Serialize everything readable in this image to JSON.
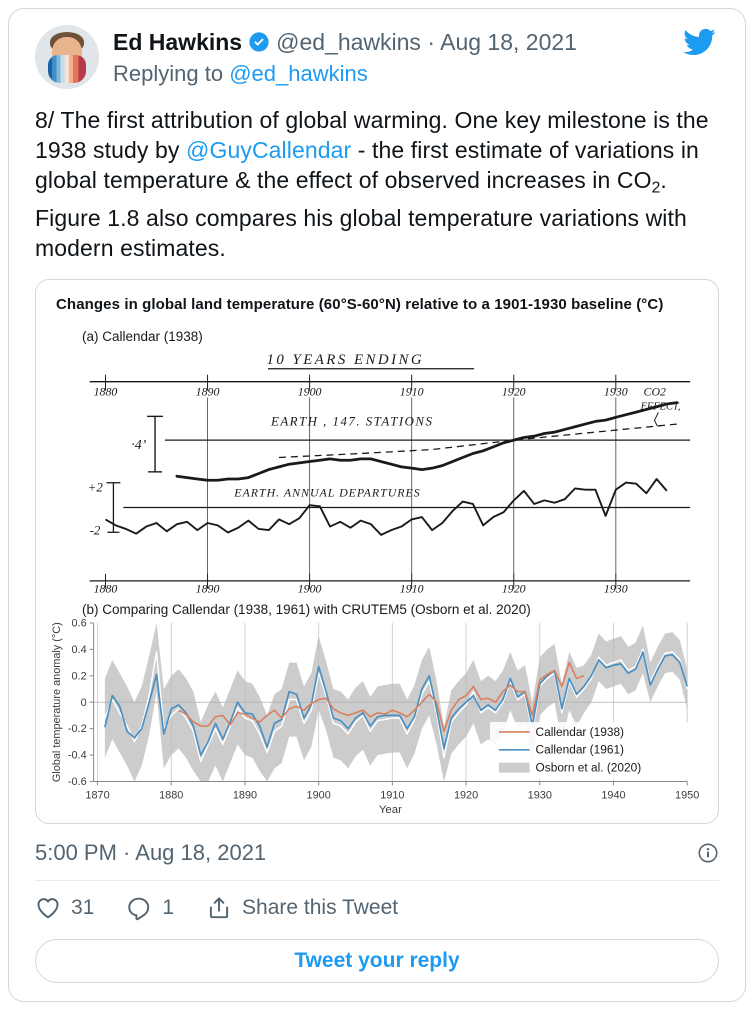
{
  "colors": {
    "accent": "#1d9bf0",
    "text": "#0f1419",
    "secondary": "#536471",
    "border": "#cfd9de",
    "callendar1938": "#d8805f",
    "callendar1961": "#4a90c2",
    "osborn_band": "#cccccc",
    "osborn_center_line": "#ffffff",
    "scan_ink": "#1a1a1a"
  },
  "header": {
    "name": "Ed Hawkins",
    "verified_badge": "verified",
    "handle_date": "@ed_hawkins · Aug 18, 2021",
    "replying_prefix": "Replying to ",
    "replying_handle": "@ed_hawkins"
  },
  "tweet": {
    "part1": "8/ The first attribution of global warming. One key milestone is the 1938 study by ",
    "link": "@GuyCallendar",
    "part2": " - the first estimate of variations in global temperature & the effect of observed increases in CO",
    "co2_sub": "2",
    "part3": ". Figure 1.8 also compares his global temperature variations with modern estimates."
  },
  "figure": {
    "title": "Changes in global land temperature (60°S-60°N) relative to a 1901-1930 baseline (°C)",
    "panel_a_label": "(a) Callendar (1938)",
    "panel_b_label": "(b) Comparing Callendar (1938, 1961) with CRUTEM5 (Osborn et al. 2020)"
  },
  "chart_data": [
    {
      "type": "line",
      "panel": "a",
      "title": "(a) Callendar (1938) — hand-drawn scan",
      "top_axis_title": "10 YEARS ENDING",
      "xticks": [
        "1880",
        "1890",
        "1900",
        "1910",
        "1920",
        "1930"
      ],
      "xlim": [
        1880,
        1936
      ],
      "labels": {
        "curve1": "EARTH , 147. STATIONS",
        "co2_line1": "CO2",
        "co2_line2": "EFFECT,",
        "curve2": "EARTH. ANNUAL DEPARTURES",
        "scale_upper": "·4’",
        "scale_plus": "+2",
        "scale_minus": "-2"
      },
      "series": [
        {
          "name": "Earth 147 stations (10-year means)",
          "start": 1887,
          "values": [
            -0.27,
            -0.28,
            -0.29,
            -0.3,
            -0.3,
            -0.29,
            -0.29,
            -0.28,
            -0.25,
            -0.22,
            -0.2,
            -0.18,
            -0.17,
            -0.16,
            -0.15,
            -0.14,
            -0.15,
            -0.15,
            -0.14,
            -0.14,
            -0.16,
            -0.18,
            -0.2,
            -0.21,
            -0.22,
            -0.21,
            -0.19,
            -0.16,
            -0.13,
            -0.1,
            -0.08,
            -0.05,
            -0.02,
            0.0,
            0.02,
            0.03,
            0.05,
            0.06,
            0.08,
            0.1,
            0.12,
            0.14,
            0.15,
            0.17,
            0.19,
            0.21,
            0.23,
            0.25,
            0.27,
            0.28
          ]
        },
        {
          "name": "CO2 effect (dashed)",
          "x": [
            1897,
            1905,
            1912,
            1920,
            1928,
            1936
          ],
          "values": [
            -0.13,
            -0.1,
            -0.07,
            0.0,
            0.06,
            0.12
          ]
        },
        {
          "name": "Earth annual departures",
          "start": 1880,
          "values": [
            -1.0,
            -1.5,
            -1.8,
            -2.2,
            -1.6,
            -1.3,
            -2.0,
            -1.4,
            -1.2,
            -1.9,
            -1.3,
            -1.5,
            -2.1,
            -1.7,
            -1.1,
            -1.8,
            -1.9,
            -1.0,
            -1.4,
            -0.9,
            0.2,
            0.1,
            -1.6,
            -1.2,
            -1.7,
            -1.1,
            -1.4,
            -2.3,
            -1.9,
            -1.6,
            -1.0,
            -0.8,
            -1.9,
            -1.3,
            -0.3,
            0.5,
            0.3,
            -1.5,
            -0.8,
            -0.4,
            0.6,
            1.4,
            0.3,
            0.6,
            0.4,
            0.7,
            1.6,
            1.5,
            1.5,
            -0.7,
            1.5,
            2.1,
            2.0,
            1.2,
            2.4,
            1.4
          ]
        }
      ]
    },
    {
      "type": "line",
      "panel": "b",
      "title": "(b) Comparing Callendar (1938, 1961) with CRUTEM5 (Osborn et al. 2020)",
      "xlabel": "Year",
      "ylabel": "Global temperature anomaly (°C)",
      "xlim": [
        1869,
        1951
      ],
      "ylim": [
        -0.6,
        0.6
      ],
      "xticks": [
        1870,
        1880,
        1890,
        1900,
        1910,
        1920,
        1930,
        1940,
        1950
      ],
      "yticks": [
        0.6,
        0.4,
        0.2,
        0,
        -0.2,
        -0.4,
        -0.6
      ],
      "grid": "vertical decades + zero line",
      "legend_position": "lower right",
      "legend": [
        {
          "name": "Callendar (1938)",
          "color": "#d8805f",
          "kind": "line"
        },
        {
          "name": "Callendar (1961)",
          "color": "#4a90c2",
          "kind": "line"
        },
        {
          "name": "Osborn et al. (2020)",
          "color": "#cccccc",
          "kind": "band"
        }
      ],
      "series": [
        {
          "name": "Callendar (1938)",
          "color": "#d8805f",
          "start": 1881,
          "values": [
            -0.06,
            -0.09,
            -0.15,
            -0.18,
            -0.18,
            -0.11,
            -0.1,
            -0.17,
            -0.08,
            -0.09,
            -0.12,
            -0.15,
            -0.1,
            -0.06,
            -0.12,
            -0.05,
            -0.03,
            -0.06,
            -0.01,
            0.02,
            0.03,
            -0.05,
            -0.08,
            -0.1,
            -0.08,
            -0.06,
            -0.11,
            -0.08,
            -0.09,
            -0.06,
            -0.08,
            -0.11,
            -0.06,
            0.0,
            0.06,
            0.0,
            -0.22,
            -0.06,
            0.02,
            0.05,
            0.12,
            0.02,
            0.03,
            0.0,
            0.08,
            0.13,
            0.08,
            0.08,
            -0.1,
            0.17,
            0.21,
            0.24,
            0.12,
            0.3,
            0.18,
            0.2
          ]
        },
        {
          "name": "Callendar (1961)",
          "color": "#4a90c2",
          "start": 1871,
          "values": [
            -0.19,
            0.05,
            -0.03,
            -0.22,
            -0.27,
            -0.2,
            0.0,
            0.21,
            -0.24,
            -0.05,
            -0.02,
            -0.08,
            -0.18,
            -0.4,
            -0.3,
            -0.16,
            -0.28,
            -0.15,
            0.0,
            -0.08,
            -0.09,
            -0.18,
            -0.34,
            -0.16,
            -0.13,
            0.08,
            0.06,
            -0.12,
            -0.02,
            0.27,
            0.08,
            -0.12,
            -0.14,
            -0.2,
            -0.12,
            -0.08,
            -0.18,
            -0.11,
            -0.1,
            -0.1,
            -0.1,
            -0.2,
            -0.11,
            0.1,
            0.2,
            -0.05,
            -0.35,
            -0.12,
            -0.05,
            0.0,
            0.05,
            -0.06,
            -0.02,
            -0.06,
            0.02,
            0.18,
            0.04,
            0.08,
            -0.18,
            0.14,
            0.2,
            0.24,
            -0.05,
            0.18,
            0.06,
            0.12,
            0.2,
            0.32,
            0.26,
            0.28,
            0.29,
            0.22,
            0.25,
            0.38,
            0.13,
            0.25,
            0.35,
            0.36,
            0.3,
            0.12
          ]
        }
      ],
      "band": {
        "name": "Osborn et al. (2020)",
        "color": "#cccccc",
        "center_color": "#ffffff",
        "start": 1871,
        "center": [
          -0.12,
          0.02,
          -0.08,
          -0.18,
          -0.3,
          -0.18,
          0.05,
          0.38,
          -0.2,
          -0.1,
          -0.05,
          -0.12,
          -0.22,
          -0.45,
          -0.32,
          -0.2,
          -0.32,
          -0.18,
          -0.04,
          -0.12,
          -0.14,
          -0.24,
          -0.38,
          -0.22,
          -0.18,
          0.02,
          0.02,
          -0.16,
          -0.06,
          0.22,
          0.05,
          -0.16,
          -0.18,
          -0.24,
          -0.15,
          -0.1,
          -0.22,
          -0.14,
          -0.13,
          -0.12,
          -0.12,
          -0.24,
          -0.13,
          0.06,
          0.16,
          -0.08,
          -0.42,
          -0.15,
          -0.08,
          -0.02,
          0.08,
          -0.08,
          -0.04,
          -0.08,
          0.0,
          0.16,
          0.02,
          0.06,
          -0.22,
          0.12,
          0.18,
          0.22,
          -0.08,
          0.16,
          0.04,
          0.1,
          0.18,
          0.34,
          0.28,
          0.3,
          0.32,
          0.24,
          0.27,
          0.4,
          0.15,
          0.27,
          0.37,
          0.38,
          0.32,
          0.1
        ],
        "halfwidth": [
          0.3,
          0.3,
          0.3,
          0.3,
          0.3,
          0.3,
          0.3,
          0.3,
          0.3,
          0.3,
          0.3,
          0.3,
          0.3,
          0.3,
          0.3,
          0.28,
          0.28,
          0.28,
          0.28,
          0.28,
          0.28,
          0.28,
          0.28,
          0.28,
          0.28,
          0.28,
          0.28,
          0.28,
          0.28,
          0.28,
          0.26,
          0.26,
          0.26,
          0.26,
          0.26,
          0.26,
          0.26,
          0.26,
          0.26,
          0.26,
          0.26,
          0.26,
          0.26,
          0.26,
          0.26,
          0.24,
          0.24,
          0.24,
          0.24,
          0.24,
          0.24,
          0.24,
          0.24,
          0.24,
          0.24,
          0.22,
          0.22,
          0.22,
          0.22,
          0.22,
          0.22,
          0.22,
          0.22,
          0.22,
          0.22,
          0.18,
          0.18,
          0.18,
          0.18,
          0.18,
          0.18,
          0.18,
          0.18,
          0.18,
          0.15,
          0.15,
          0.15,
          0.15,
          0.15,
          0.15
        ]
      }
    }
  ],
  "footer": {
    "timestamp": "5:00 PM · Aug 18, 2021",
    "likes": "31",
    "replies": "1",
    "share_label": "Share this Tweet"
  },
  "reply_button": {
    "label": "Tweet your reply"
  }
}
